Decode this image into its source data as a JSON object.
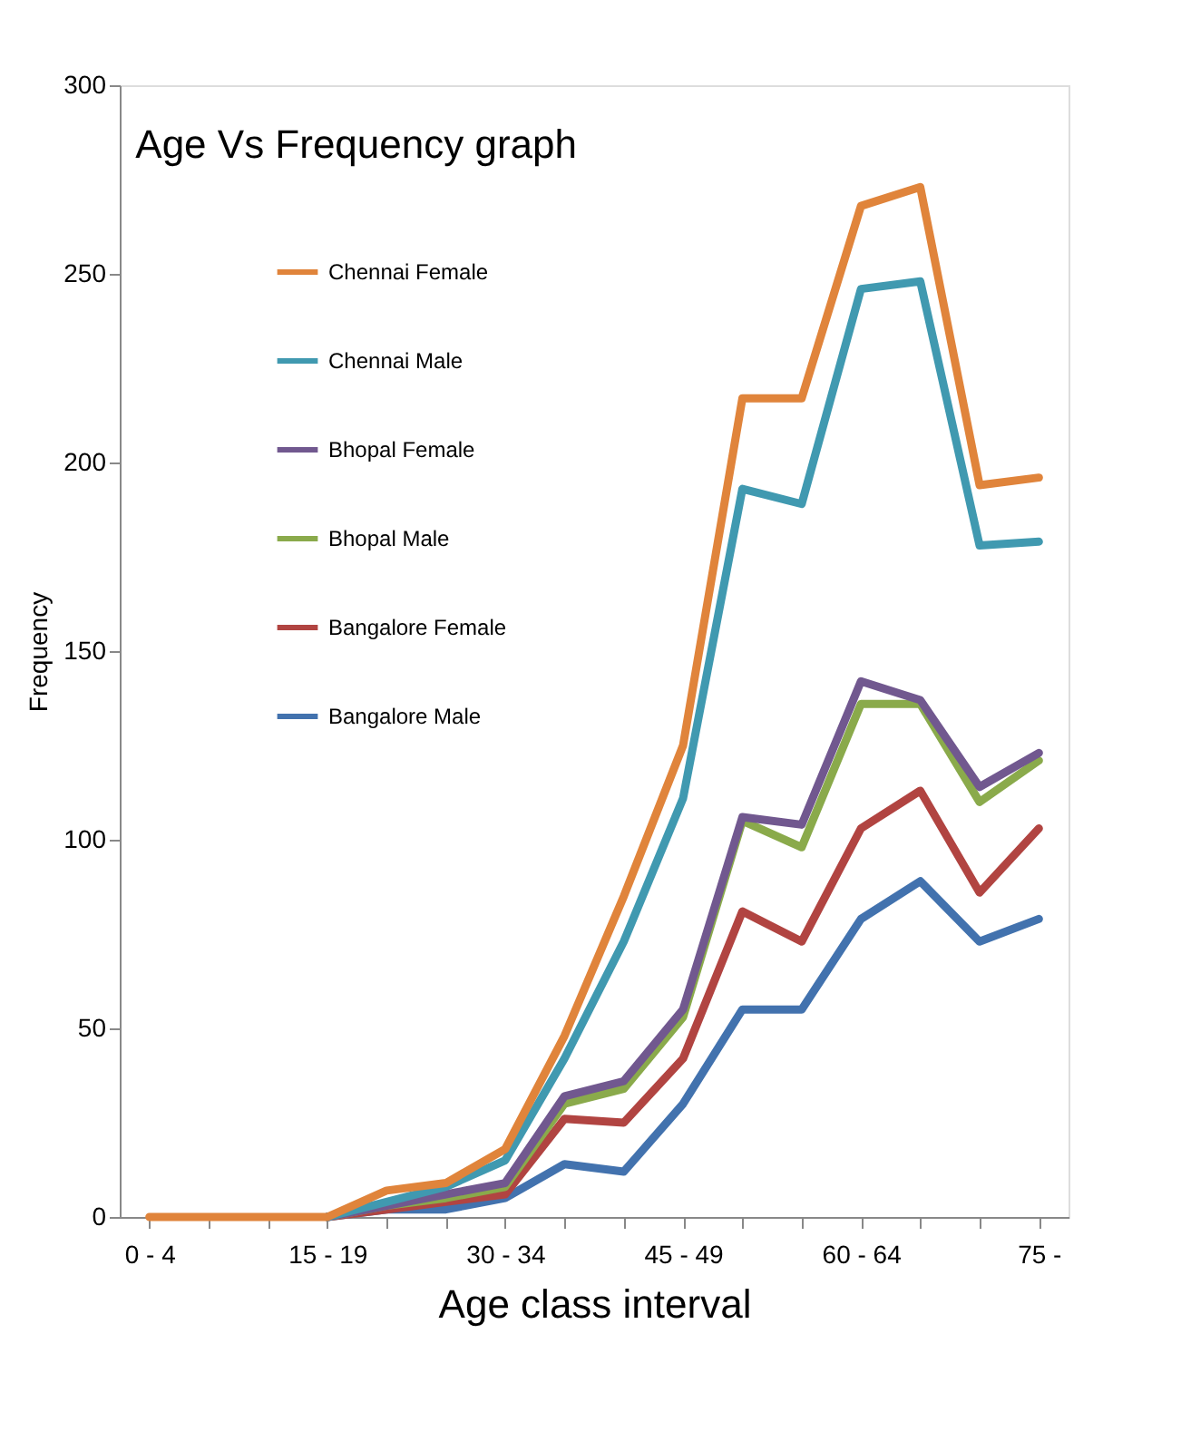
{
  "chart_data": {
    "type": "line",
    "title": "Age Vs Frequency graph",
    "xlabel": "Age class interval",
    "ylabel": "Frequency",
    "categories": [
      "0  -  4",
      null,
      null,
      "15  -  19",
      null,
      null,
      "30  -  34",
      null,
      null,
      "45  -  49",
      null,
      null,
      "60  -  64",
      null,
      null,
      "75  -"
    ],
    "series": [
      {
        "name": "Chennai Female",
        "color": "#e0843b",
        "values": [
          0,
          0,
          0,
          0,
          7,
          9,
          18,
          48,
          85,
          125,
          217,
          217,
          268,
          273,
          194,
          196
        ]
      },
      {
        "name": "Chennai Male",
        "color": "#4099b0",
        "values": [
          null,
          null,
          null,
          0,
          4,
          8,
          15,
          42,
          73,
          111,
          193,
          189,
          246,
          248,
          178,
          179
        ]
      },
      {
        "name": "Bhopal Female",
        "color": "#71588f",
        "values": [
          null,
          null,
          null,
          0,
          3,
          6,
          9,
          32,
          36,
          55,
          106,
          104,
          142,
          137,
          114,
          123
        ]
      },
      {
        "name": "Bhopal Male",
        "color": "#8aaa4b",
        "values": [
          null,
          null,
          null,
          0,
          3,
          5,
          8,
          30,
          34,
          53,
          105,
          98,
          136,
          136,
          110,
          121
        ]
      },
      {
        "name": "Bangalore Female",
        "color": "#b14441",
        "values": [
          null,
          null,
          null,
          0,
          2,
          4,
          6,
          26,
          25,
          42,
          81,
          73,
          103,
          113,
          86,
          103
        ]
      },
      {
        "name": "Bangalore Male",
        "color": "#4272ae",
        "values": [
          null,
          null,
          null,
          0,
          2,
          2,
          5,
          14,
          12,
          30,
          55,
          55,
          79,
          89,
          73,
          79
        ]
      }
    ],
    "ylim": [
      0,
      300
    ],
    "yticks": [
      0,
      50,
      100,
      150,
      200,
      250,
      300
    ],
    "grid": false,
    "legend": "top left",
    "line_style": "solid",
    "marker": "none"
  }
}
